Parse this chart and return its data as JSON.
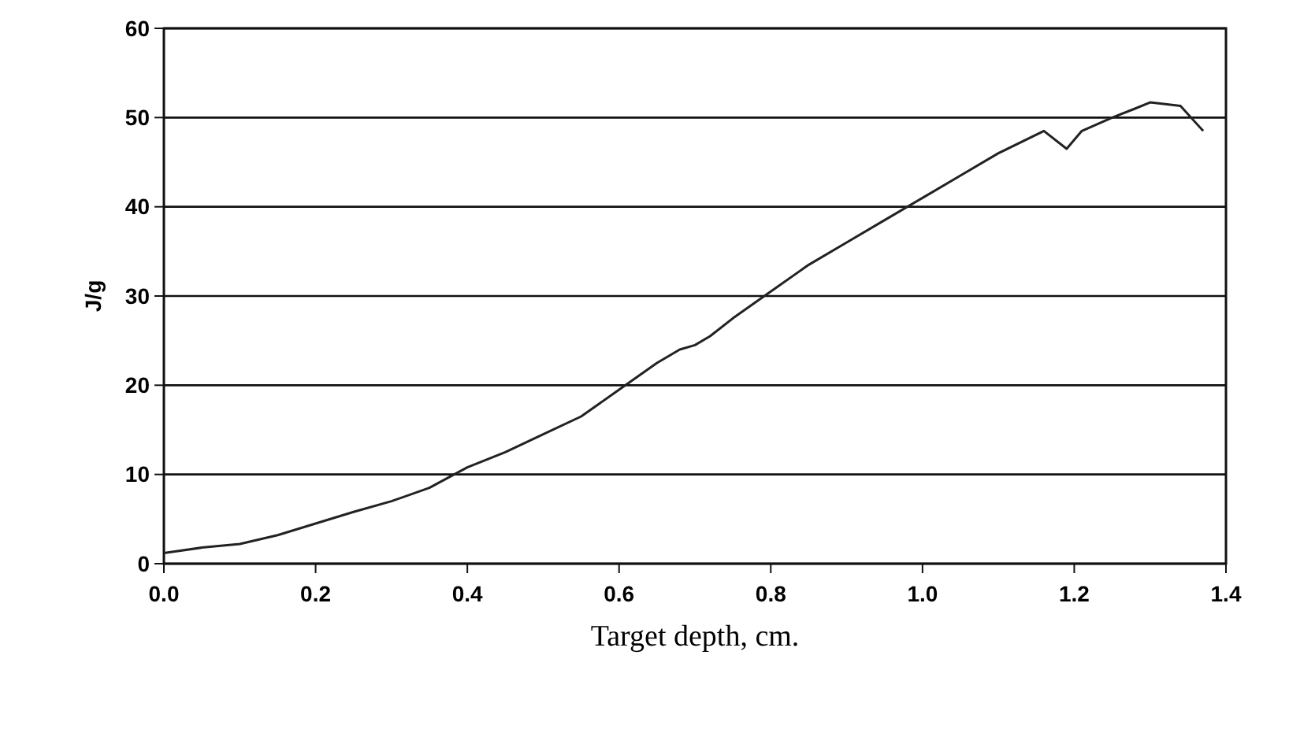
{
  "chart_data": {
    "type": "line",
    "xlabel": "Target depth, cm.",
    "ylabel": "J/g",
    "x": [
      0,
      0.05,
      0.1,
      0.15,
      0.2,
      0.25,
      0.3,
      0.35,
      0.4,
      0.45,
      0.5,
      0.55,
      0.6,
      0.65,
      0.68,
      0.7,
      0.72,
      0.75,
      0.8,
      0.85,
      0.9,
      0.95,
      1.0,
      1.05,
      1.1,
      1.16,
      1.19,
      1.21,
      1.25,
      1.28,
      1.3,
      1.34,
      1.37
    ],
    "series": [
      {
        "color": "#222222",
        "values": [
          1.2,
          1.8,
          2.2,
          3.2,
          4.5,
          5.8,
          7,
          8.5,
          10.8,
          12.5,
          14.5,
          16.5,
          19.5,
          22.5,
          24,
          24.5,
          25.5,
          27.5,
          30.5,
          33.5,
          36,
          38.5,
          41,
          43.5,
          46,
          48.5,
          46.5,
          48.5,
          50,
          51,
          51.7,
          51.3,
          48.5
        ]
      }
    ],
    "xlim": [
      0,
      1.4
    ],
    "ylim": [
      0,
      60
    ],
    "xticks": [
      {
        "value": 0,
        "label": "0.0"
      },
      0.2,
      0.4,
      0.6,
      0.8,
      {
        "value": 1,
        "label": "1.0"
      },
      1.2,
      1.4
    ],
    "yticks": [
      0,
      10,
      20,
      30,
      40,
      50,
      60
    ],
    "grid": "y",
    "marker": "none",
    "line_style": "solid"
  }
}
